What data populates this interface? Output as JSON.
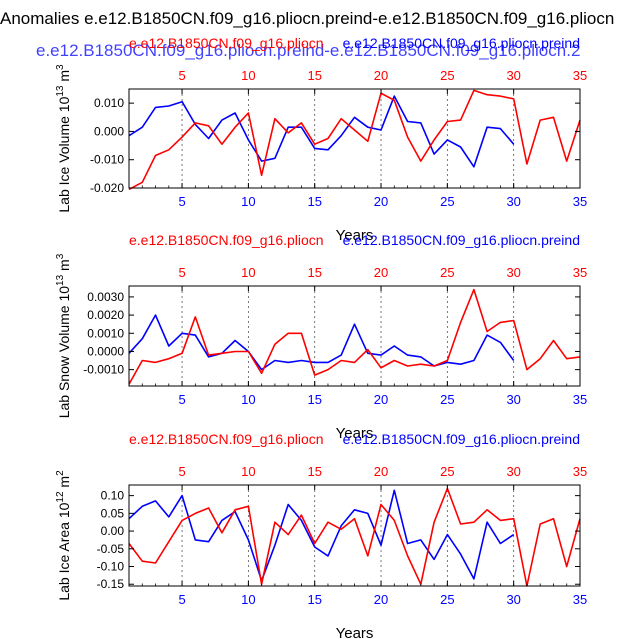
{
  "main_title": "Anomalies e.e12.B1850CN.f09_g16.pliocn.preind-e.e12.B1850CN.f09_g16.pliocn",
  "subtitle": "e.e12.B1850CN.f09_g16.pliocn.preind-e.e12.B1850CN.f09_g16.pliocn.2",
  "colors": {
    "blue": "#0000ff",
    "red": "#ff0000",
    "black": "#000000",
    "grid": "#555555"
  },
  "chart_data": [
    {
      "type": "line",
      "title_left": "e.e12.B1850CN.f09_g16.pliocn",
      "title_right": "e.e12.B1850CN.f09_g16.pliocn.preind",
      "ylabel": "Lab Ice Volume 10",
      "ylabel_exp": "13",
      "ylabel_unit": " m",
      "ylabel_unit_exp": "3",
      "xlabel": "Years",
      "ylim": [
        -0.02,
        0.015
      ],
      "yticks": [
        -0.02,
        -0.01,
        0.0,
        0.01
      ],
      "ytick_labels": [
        "-0.020",
        "-0.010",
        "0.000",
        "0.010"
      ],
      "bottom_xlim": [
        1,
        35
      ],
      "bottom_xticks": [
        5,
        10,
        15,
        20,
        25,
        30,
        35
      ],
      "top_xlim": [
        1,
        35
      ],
      "top_xticks": [
        5,
        10,
        15,
        20,
        25,
        30,
        35
      ],
      "series": [
        {
          "name": "e.e12.B1850CN.f09_g16.pliocn.preind",
          "color": "blue",
          "x": [
            1,
            2,
            3,
            4,
            5,
            6,
            7,
            8,
            9,
            10,
            11,
            12,
            13,
            14,
            15,
            16,
            17,
            18,
            19,
            20,
            21,
            22,
            23,
            24,
            25,
            26,
            27,
            28,
            29,
            30
          ],
          "values": [
            -0.0015,
            0.0015,
            0.0085,
            0.009,
            0.0105,
            0.0025,
            -0.0025,
            0.004,
            0.0065,
            -0.003,
            -0.0105,
            -0.0095,
            0.0015,
            0.0015,
            -0.006,
            -0.0065,
            -0.0015,
            0.005,
            0.0015,
            0.0005,
            0.0125,
            0.0035,
            0.003,
            -0.008,
            -0.003,
            -0.0055,
            -0.0125,
            0.0015,
            0.001,
            -0.0045
          ]
        },
        {
          "name": "e.e12.B1850CN.f09_g16.pliocn",
          "color": "red",
          "x": [
            1,
            2,
            3,
            4,
            5,
            6,
            7,
            8,
            9,
            10,
            11,
            12,
            13,
            14,
            15,
            16,
            17,
            18,
            19,
            20,
            21,
            22,
            23,
            24,
            25,
            26,
            27,
            28,
            29,
            30,
            31,
            32,
            33,
            34,
            35
          ],
          "values": [
            -0.0205,
            -0.018,
            -0.0085,
            -0.0065,
            -0.002,
            0.003,
            0.002,
            -0.0045,
            0.0015,
            0.0065,
            -0.0155,
            0.0045,
            -0.0005,
            0.003,
            -0.0045,
            -0.0025,
            0.0045,
            0.0005,
            -0.0035,
            0.0135,
            0.011,
            -0.002,
            -0.0105,
            -0.003,
            0.0035,
            0.004,
            0.0145,
            0.013,
            0.0125,
            0.0115,
            -0.0115,
            0.004,
            0.005,
            -0.0105,
            0.004
          ]
        }
      ]
    },
    {
      "type": "line",
      "title_left": "e.e12.B1850CN.f09_g16.pliocn",
      "title_right": "e.e12.B1850CN.f09_g16.pliocn.preind",
      "ylabel": "Lab Snow Volume 10",
      "ylabel_exp": "13",
      "ylabel_unit": " m",
      "ylabel_unit_exp": "3",
      "xlabel": "Years",
      "ylim": [
        -0.0019,
        0.0036
      ],
      "yticks": [
        -0.001,
        0.0,
        0.001,
        0.002,
        0.003
      ],
      "ytick_labels": [
        "-0.0010",
        "0.0000",
        "0.0010",
        "0.0020",
        "0.0030"
      ],
      "bottom_xlim": [
        1,
        35
      ],
      "bottom_xticks": [
        5,
        10,
        15,
        20,
        25,
        30,
        35
      ],
      "top_xlim": [
        1,
        35
      ],
      "top_xticks": [
        5,
        10,
        15,
        20,
        25,
        30,
        35
      ],
      "series": [
        {
          "name": "e.e12.B1850CN.f09_g16.pliocn.preind",
          "color": "blue",
          "x": [
            1,
            2,
            3,
            4,
            5,
            6,
            7,
            8,
            9,
            10,
            11,
            12,
            13,
            14,
            15,
            16,
            17,
            18,
            19,
            20,
            21,
            22,
            23,
            24,
            25,
            26,
            27,
            28,
            29,
            30
          ],
          "values": [
            -0.0001,
            0.0007,
            0.002,
            0.0003,
            0.001,
            0.0009,
            -0.0003,
            -0.0001,
            0.0006,
            0.0,
            -0.001,
            -0.0005,
            -0.0006,
            -0.0005,
            -0.0006,
            -0.0006,
            -0.0002,
            0.0015,
            -0.0001,
            -0.0002,
            0.0003,
            -0.0002,
            -0.0003,
            -0.0008,
            -0.0006,
            -0.0007,
            -0.0005,
            0.0009,
            0.0005,
            -0.0005
          ]
        },
        {
          "name": "e.e12.B1850CN.f09_g16.pliocn",
          "color": "red",
          "x": [
            1,
            2,
            3,
            4,
            5,
            6,
            7,
            8,
            9,
            10,
            11,
            12,
            13,
            14,
            15,
            16,
            17,
            18,
            19,
            20,
            21,
            22,
            23,
            24,
            25,
            26,
            27,
            28,
            29,
            30,
            31,
            32,
            33,
            34,
            35
          ],
          "values": [
            -0.0018,
            -0.0005,
            -0.0006,
            -0.0004,
            -0.0001,
            0.0019,
            -0.0002,
            -0.0001,
            0.0,
            0.0,
            -0.0012,
            0.0004,
            0.001,
            0.001,
            -0.0013,
            -0.001,
            -0.0005,
            -0.0006,
            0.0001,
            -0.0009,
            -0.0005,
            -0.0008,
            -0.0007,
            -0.0008,
            -0.0005,
            0.0016,
            0.0034,
            0.0011,
            0.0016,
            0.0017,
            -0.001,
            -0.0004,
            0.0006,
            -0.0004,
            -0.0003
          ]
        }
      ]
    },
    {
      "type": "line",
      "title_left": "e.e12.B1850CN.f09_g16.pliocn",
      "title_right": "e.e12.B1850CN.f09_g16.pliocn.preind",
      "ylabel": "Lab Ice Area 10",
      "ylabel_exp": "12",
      "ylabel_unit": " m",
      "ylabel_unit_exp": "2",
      "xlabel": "Years",
      "ylim": [
        -0.155,
        0.13
      ],
      "yticks": [
        -0.15,
        -0.1,
        -0.05,
        0.0,
        0.05,
        0.1
      ],
      "ytick_labels": [
        "-0.15",
        "-0.10",
        "-0.05",
        "0.00",
        "0.05",
        "0.10"
      ],
      "bottom_xlim": [
        1,
        35
      ],
      "bottom_xticks": [
        5,
        10,
        15,
        20,
        25,
        30,
        35
      ],
      "top_xlim": [
        1,
        35
      ],
      "top_xticks": [
        5,
        10,
        15,
        20,
        25,
        30,
        35
      ],
      "series": [
        {
          "name": "e.e12.B1850CN.f09_g16.pliocn.preind",
          "color": "blue",
          "x": [
            1,
            2,
            3,
            4,
            5,
            6,
            7,
            8,
            9,
            10,
            11,
            12,
            13,
            14,
            15,
            16,
            17,
            18,
            19,
            20,
            21,
            22,
            23,
            24,
            25,
            26,
            27,
            28,
            29,
            30
          ],
          "values": [
            0.035,
            0.07,
            0.085,
            0.04,
            0.1,
            -0.025,
            -0.03,
            0.03,
            0.055,
            -0.025,
            -0.14,
            -0.04,
            0.075,
            0.03,
            -0.045,
            -0.07,
            0.015,
            0.06,
            0.05,
            -0.04,
            0.115,
            -0.035,
            -0.025,
            -0.08,
            -0.01,
            -0.065,
            -0.135,
            0.025,
            -0.035,
            -0.01
          ]
        },
        {
          "name": "e.e12.B1850CN.f09_g16.pliocn",
          "color": "red",
          "x": [
            1,
            2,
            3,
            4,
            5,
            6,
            7,
            8,
            9,
            10,
            11,
            12,
            13,
            14,
            15,
            16,
            17,
            18,
            19,
            20,
            21,
            22,
            23,
            24,
            25,
            26,
            27,
            28,
            29,
            30,
            31,
            32,
            33,
            34,
            35
          ],
          "values": [
            -0.035,
            -0.085,
            -0.09,
            -0.03,
            0.03,
            0.05,
            0.065,
            -0.005,
            0.06,
            0.07,
            -0.15,
            0.025,
            -0.01,
            0.045,
            -0.035,
            0.025,
            0.005,
            0.035,
            -0.07,
            0.075,
            0.03,
            -0.07,
            -0.15,
            0.025,
            0.12,
            0.02,
            0.025,
            0.06,
            0.03,
            0.035,
            -0.155,
            0.02,
            0.035,
            -0.1,
            0.035
          ]
        }
      ]
    }
  ]
}
